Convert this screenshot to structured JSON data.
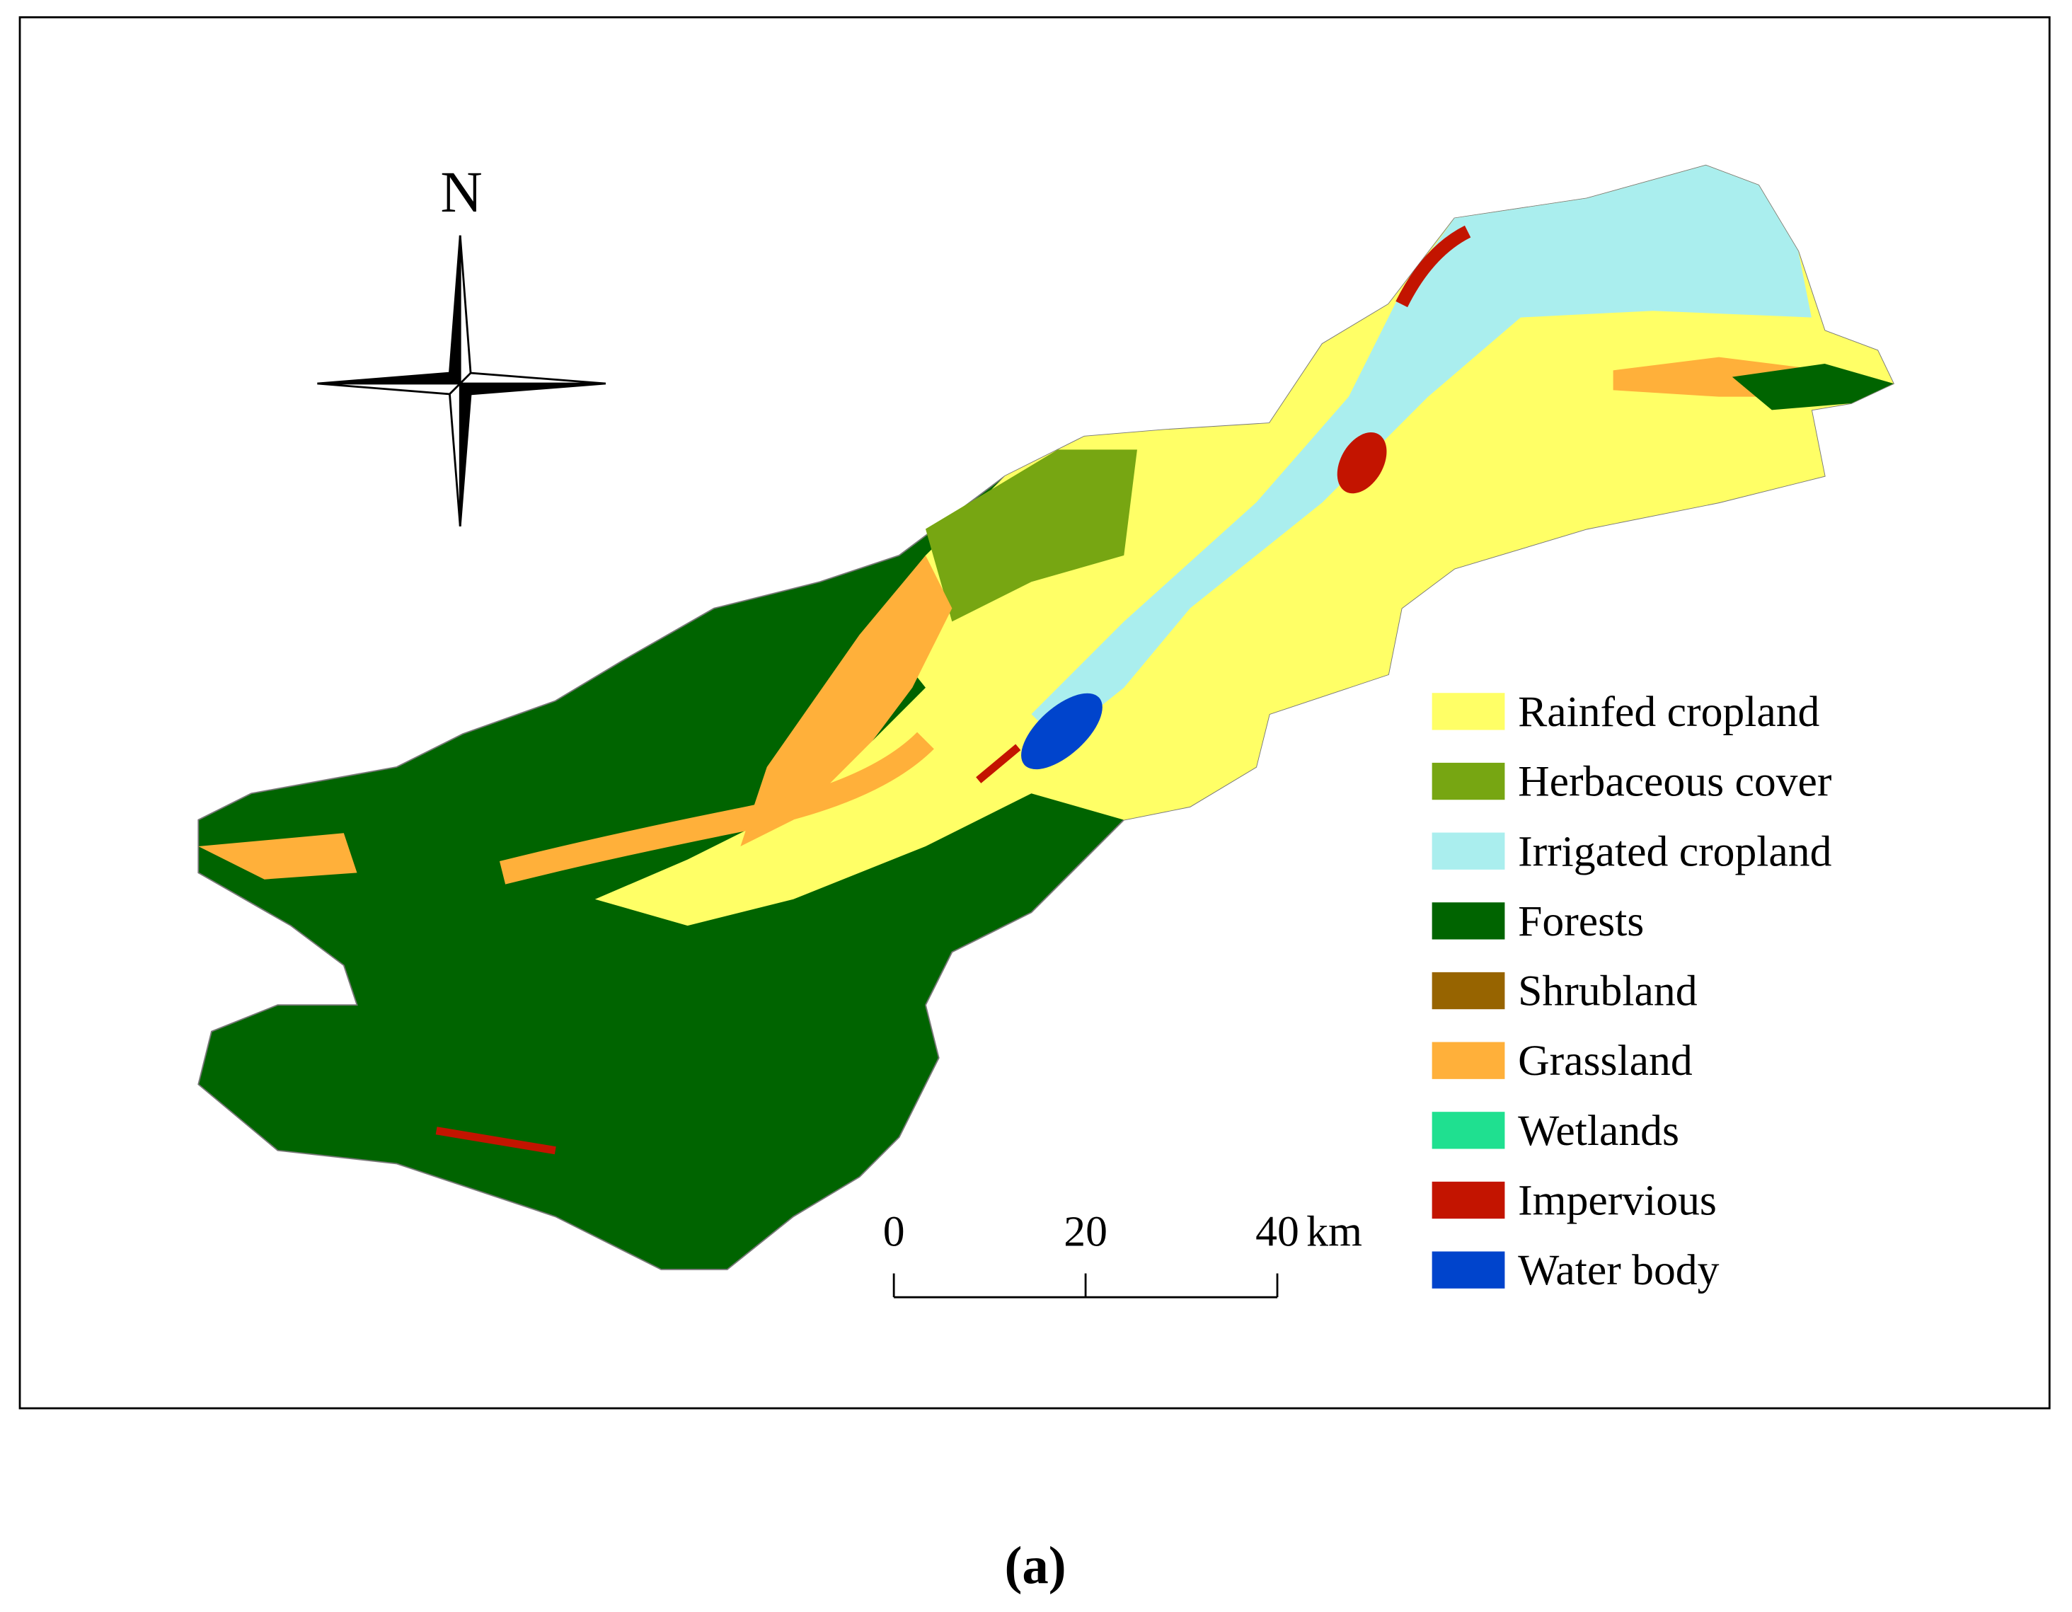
{
  "north_label": "N",
  "legend": [
    {
      "label": "Rainfed cropland",
      "color": "#ffff66"
    },
    {
      "label": "Herbaceous cover",
      "color": "#77a612"
    },
    {
      "label": "Irrigated cropland",
      "color": "#aaeeee"
    },
    {
      "label": "Forests",
      "color": "#006400"
    },
    {
      "label": "Shrubland",
      "color": "#976400"
    },
    {
      "label": "Grassland",
      "color": "#ffb03a"
    },
    {
      "label": "Wetlands",
      "color": "#1fe090"
    },
    {
      "label": "Impervious",
      "color": "#c31400"
    },
    {
      "label": "Water body",
      "color": "#0044cc"
    }
  ],
  "scale_bar": {
    "ticks": [
      0,
      20,
      40
    ],
    "unit": "km"
  },
  "caption": "(a)"
}
